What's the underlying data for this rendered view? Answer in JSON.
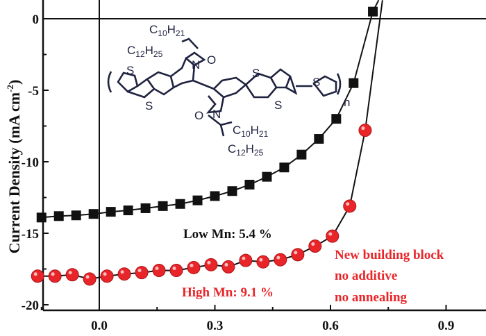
{
  "chart_data": {
    "type": "scatter",
    "title": "",
    "xlabel": "",
    "ylabel": "Current Density (mA cm",
    "ylabel_sup": "-2",
    "ylabel_end": ")",
    "xlim": [
      -0.165,
      1.0
    ],
    "ylim": [
      -20.3,
      1.3
    ],
    "xticks": [
      0.0,
      0.3,
      0.6,
      0.9
    ],
    "xtick_labels": [
      "0.0",
      "0.3",
      "0.6",
      "0.9"
    ],
    "yticks": [
      0,
      -5,
      -10,
      -15,
      -20
    ],
    "ytick_labels": [
      "0",
      "-5",
      "-10",
      "-15",
      "-20"
    ],
    "series": [
      {
        "name": "Low Mn",
        "marker": "square",
        "color": "#111111",
        "x": [
          -0.15,
          -0.105,
          -0.06,
          -0.015,
          0.03,
          0.075,
          0.12,
          0.165,
          0.21,
          0.255,
          0.3,
          0.345,
          0.39,
          0.435,
          0.48,
          0.525,
          0.57,
          0.615,
          0.66,
          0.71
        ],
        "y": [
          -13.9,
          -13.8,
          -13.75,
          -13.65,
          -13.5,
          -13.4,
          -13.25,
          -13.1,
          -12.95,
          -12.7,
          -12.4,
          -12.05,
          -11.6,
          -11.05,
          -10.4,
          -9.5,
          -8.4,
          -7.0,
          -4.5,
          0.5
        ]
      },
      {
        "name": "High Mn",
        "marker": "circle",
        "color": "#e8262a",
        "x": [
          -0.16,
          -0.115,
          -0.07,
          -0.025,
          0.02,
          0.065,
          0.11,
          0.155,
          0.2,
          0.245,
          0.29,
          0.335,
          0.38,
          0.425,
          0.47,
          0.515,
          0.56,
          0.605,
          0.65,
          0.69
        ],
        "y": [
          -18.0,
          -18.0,
          -17.9,
          -18.2,
          -18.0,
          -17.85,
          -17.75,
          -17.6,
          -17.6,
          -17.4,
          -17.2,
          -17.35,
          -16.9,
          -17.0,
          -16.85,
          -16.5,
          -15.9,
          -15.2,
          -13.1,
          -7.8
        ]
      }
    ],
    "annotations": [
      {
        "text": "Low Mn: 5.4 %",
        "color": "#111111"
      },
      {
        "text": "High Mn: 9.1 %",
        "color": "#e8262a"
      },
      {
        "text": "New building block",
        "color": "#e8262a"
      },
      {
        "text": "no additive",
        "color": "#e8262a"
      },
      {
        "text": "no annealing",
        "color": "#e8262a"
      }
    ],
    "inset_structure": {
      "side_chain_1": [
        "C",
        "10",
        "H",
        "21"
      ],
      "side_chain_2": [
        "C",
        "12",
        "H",
        "25"
      ],
      "atoms": {
        "S": "S",
        "N": "N",
        "O": "O",
        "n": "n"
      }
    }
  }
}
